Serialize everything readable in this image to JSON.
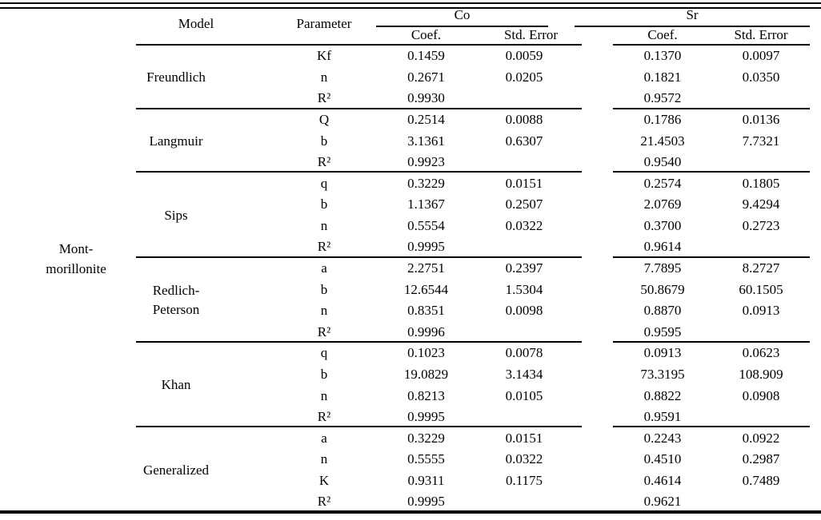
{
  "table": {
    "row_label": "Mont-\nmorillonite",
    "headers": {
      "model": "Model",
      "parameter": "Parameter",
      "co": "Co",
      "sr": "Sr",
      "co_coef": "Coef.",
      "co_std_error": "Std. Error",
      "sr_coef": "Coef.",
      "sr_std_error": "Std. Error"
    },
    "sections": [
      {
        "model": "Freundlich",
        "rows": [
          {
            "param": "Kf",
            "co_coef": "0.1459",
            "co_std": "0.0059",
            "sr_coef": "0.1370",
            "sr_std": "0.0097"
          },
          {
            "param": "n",
            "co_coef": "0.2671",
            "co_std": "0.0205",
            "sr_coef": "0.1821",
            "sr_std": "0.0350"
          },
          {
            "param": "R²",
            "co_coef": "0.9930",
            "co_std": "",
            "sr_coef": "0.9572",
            "sr_std": ""
          }
        ]
      },
      {
        "model": "Langmuir",
        "rows": [
          {
            "param": "Q",
            "co_coef": "0.2514",
            "co_std": "0.0088",
            "sr_coef": "0.1786",
            "sr_std": "0.0136"
          },
          {
            "param": "b",
            "co_coef": "3.1361",
            "co_std": "0.6307",
            "sr_coef": "21.4503",
            "sr_std": "7.7321"
          },
          {
            "param": "R²",
            "co_coef": "0.9923",
            "co_std": "",
            "sr_coef": "0.9540",
            "sr_std": ""
          }
        ]
      },
      {
        "model": "Sips",
        "rows": [
          {
            "param": "q",
            "co_coef": "0.3229",
            "co_std": "0.0151",
            "sr_coef": "0.2574",
            "sr_std": "0.1805"
          },
          {
            "param": "b",
            "co_coef": "1.1367",
            "co_std": "0.2507",
            "sr_coef": "2.0769",
            "sr_std": "9.4294"
          },
          {
            "param": "n",
            "co_coef": "0.5554",
            "co_std": "0.0322",
            "sr_coef": "0.3700",
            "sr_std": "0.2723"
          },
          {
            "param": "R²",
            "co_coef": "0.9995",
            "co_std": "",
            "sr_coef": "0.9614",
            "sr_std": ""
          }
        ]
      },
      {
        "model": "Redlich-\nPeterson",
        "rows": [
          {
            "param": "a",
            "co_coef": "2.2751",
            "co_std": "0.2397",
            "sr_coef": "7.7895",
            "sr_std": "8.2727"
          },
          {
            "param": "b",
            "co_coef": "12.6544",
            "co_std": "1.5304",
            "sr_coef": "50.8679",
            "sr_std": "60.1505"
          },
          {
            "param": "n",
            "co_coef": "0.8351",
            "co_std": "0.0098",
            "sr_coef": "0.8870",
            "sr_std": "0.0913"
          },
          {
            "param": "R²",
            "co_coef": "0.9996",
            "co_std": "",
            "sr_coef": "0.9595",
            "sr_std": ""
          }
        ]
      },
      {
        "model": "Khan",
        "rows": [
          {
            "param": "q",
            "co_coef": "0.1023",
            "co_std": "0.0078",
            "sr_coef": "0.0913",
            "sr_std": "0.0623"
          },
          {
            "param": "b",
            "co_coef": "19.0829",
            "co_std": "3.1434",
            "sr_coef": "73.3195",
            "sr_std": "108.909"
          },
          {
            "param": "n",
            "co_coef": "0.8213",
            "co_std": "0.0105",
            "sr_coef": "0.8822",
            "sr_std": "0.0908"
          },
          {
            "param": "R²",
            "co_coef": "0.9995",
            "co_std": "",
            "sr_coef": "0.9591",
            "sr_std": ""
          }
        ]
      },
      {
        "model": "Generalized",
        "rows": [
          {
            "param": "a",
            "co_coef": "0.3229",
            "co_std": "0.0151",
            "sr_coef": "0.2243",
            "sr_std": "0.0922"
          },
          {
            "param": "n",
            "co_coef": "0.5555",
            "co_std": "0.0322",
            "sr_coef": "0.4510",
            "sr_std": "0.2987"
          },
          {
            "param": "K",
            "co_coef": "0.9311",
            "co_std": "0.1175",
            "sr_coef": "0.4614",
            "sr_std": "0.7489"
          },
          {
            "param": "R²",
            "co_coef": "0.9995",
            "co_std": "",
            "sr_coef": "0.9621",
            "sr_std": ""
          }
        ]
      }
    ]
  }
}
